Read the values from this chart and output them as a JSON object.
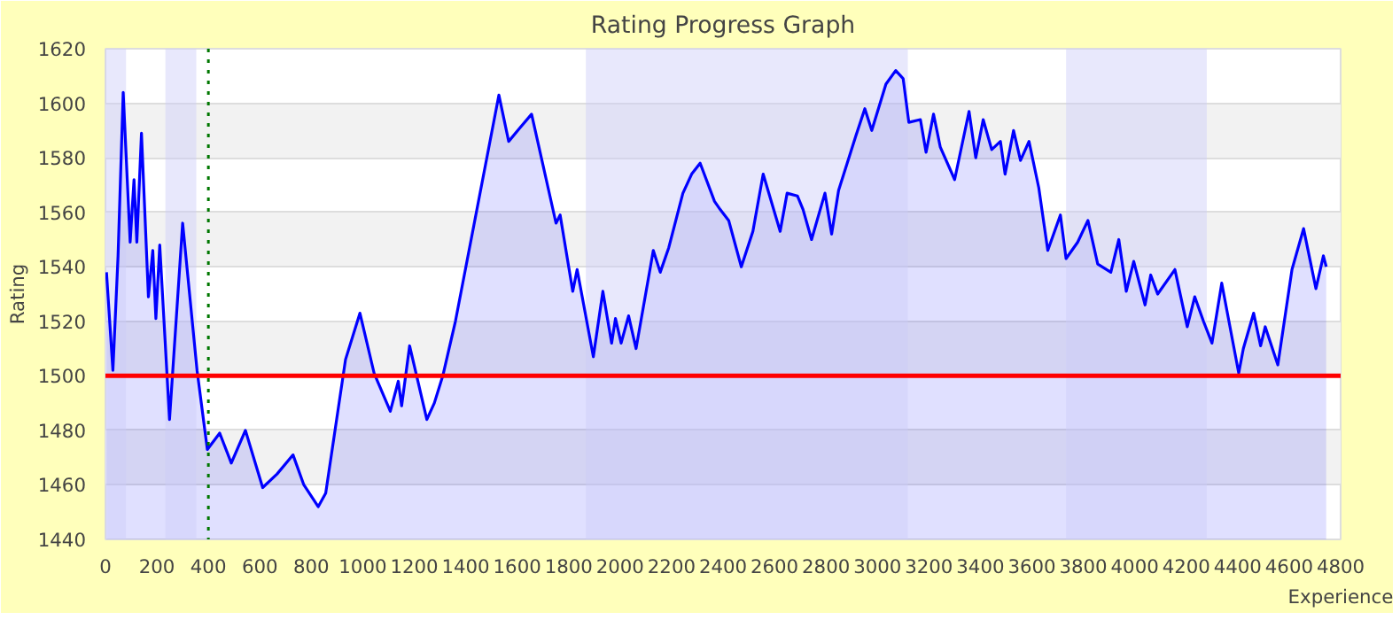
{
  "chart_data": {
    "type": "area",
    "title": "Rating Progress Graph",
    "xlabel": "Experience",
    "ylabel": "Rating",
    "x": [
      4,
      29,
      49,
      69,
      96,
      111,
      122,
      140,
      167,
      184,
      196,
      211,
      249,
      300,
      356,
      396,
      444,
      489,
      544,
      611,
      667,
      729,
      771,
      827,
      856,
      933,
      989,
      1044,
      1107,
      1138,
      1151,
      1182,
      1249,
      1278,
      1311,
      1360,
      1529,
      1567,
      1611,
      1656,
      1751,
      1767,
      1816,
      1833,
      1896,
      1933,
      1967,
      1982,
      2004,
      2033,
      2062,
      2129,
      2156,
      2189,
      2244,
      2278,
      2311,
      2367,
      2389,
      2422,
      2471,
      2516,
      2556,
      2622,
      2649,
      2689,
      2711,
      2744,
      2796,
      2822,
      2849,
      2916,
      2951,
      2978,
      3033,
      3071,
      3100,
      3122,
      3167,
      3189,
      3218,
      3244,
      3300,
      3356,
      3382,
      3411,
      3444,
      3478,
      3496,
      3529,
      3556,
      3589,
      3627,
      3662,
      3711,
      3733,
      3778,
      3818,
      3856,
      3907,
      3938,
      3967,
      3996,
      4040,
      4062,
      4089,
      4156,
      4204,
      4233,
      4267,
      4300,
      4338,
      4404,
      4422,
      4462,
      4489,
      4507,
      4556,
      4611,
      4656,
      4704,
      4733,
      4744
    ],
    "series": [
      {
        "color": "#0000ff",
        "values": [
          1538,
          1502,
          1544,
          1604,
          1549,
          1572,
          1549,
          1589,
          1529,
          1546,
          1521,
          1548,
          1484,
          1556,
          1502,
          1473,
          1479,
          1468,
          1480,
          1459,
          1464,
          1471,
          1460,
          1452,
          1457,
          1506,
          1523,
          1501,
          1487,
          1498,
          1489,
          1511,
          1484,
          1490,
          1500,
          1520,
          1603,
          1586,
          1591,
          1596,
          1556,
          1559,
          1531,
          1539,
          1507,
          1531,
          1512,
          1521,
          1512,
          1522,
          1510,
          1546,
          1538,
          1547,
          1567,
          1574,
          1578,
          1564,
          1561,
          1557,
          1540,
          1553,
          1574,
          1553,
          1567,
          1566,
          1561,
          1550,
          1567,
          1552,
          1568,
          1588,
          1598,
          1590,
          1607,
          1612,
          1609,
          1593,
          1594,
          1582,
          1596,
          1584,
          1572,
          1597,
          1580,
          1594,
          1583,
          1586,
          1574,
          1590,
          1579,
          1586,
          1569,
          1546,
          1559,
          1543,
          1549,
          1557,
          1541,
          1538,
          1550,
          1531,
          1542,
          1526,
          1537,
          1530,
          1539,
          1518,
          1529,
          1520,
          1512,
          1534,
          1501,
          1510,
          1523,
          1511,
          1518,
          1504,
          1539,
          1554,
          1532,
          1544,
          1540
        ]
      }
    ],
    "xlim": [
      0,
      4800
    ],
    "ylim": [
      1440,
      1620
    ],
    "xticks": [
      0,
      200,
      400,
      600,
      800,
      1000,
      1200,
      1400,
      1600,
      1800,
      2000,
      2200,
      2400,
      2600,
      2800,
      3000,
      3200,
      3400,
      3600,
      3800,
      4000,
      4200,
      4400,
      4600,
      4800
    ],
    "yticks": [
      1440,
      1460,
      1480,
      1500,
      1520,
      1540,
      1560,
      1580,
      1600,
      1620
    ],
    "grid": "y",
    "ref_lines": [
      {
        "axis": "y",
        "value": 1500,
        "color": "#ff0000",
        "line_style": "solid"
      },
      {
        "axis": "x",
        "value": 400,
        "color": "#007700",
        "line_style": "dotted"
      }
    ],
    "bands": [
      {
        "axis": "x",
        "from": 0,
        "to": 80,
        "color": "#ccccf8"
      },
      {
        "axis": "x",
        "from": 233,
        "to": 353,
        "color": "#ccccf8"
      },
      {
        "axis": "x",
        "from": 1867,
        "to": 3118,
        "color": "#ccccf8"
      },
      {
        "axis": "x",
        "from": 3733,
        "to": 4280,
        "color": "#ccccf8"
      }
    ]
  }
}
